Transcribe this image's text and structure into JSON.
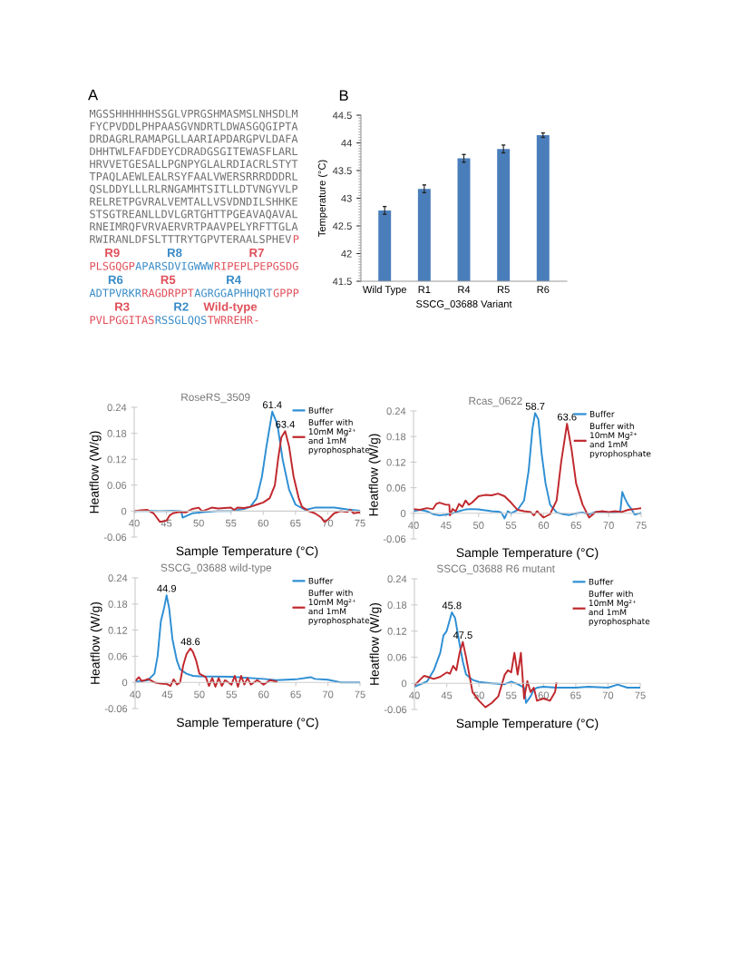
{
  "chart_data": [
    {
      "type": "other",
      "title": "A",
      "annotations": [
        "MGSSHHHHHHSSGLVPRGSHMASMSLNHSDLM",
        "FYCPVDDLPHPAASGVNDRTLDWASGQGIPTA",
        "DRDAGRLRAMAPGLLAARIAPDARGPVLDAFA",
        "DHHTWLFAFDDEYCDRADGSGITEWASFLARL",
        "HRVVETGESALLPGNPYGLALRDIACRLSTYT",
        "TPAQLAEWLEALRSYFAALVWERSRRRDDDRL",
        "QSLDDYLLLRLRNGAMHTSITLLDTVNGYVLP",
        "RELRETPGVRALVEMTALLVSVDNDILSHHKE",
        "STSGTREANLLDVLGRTGHTTPGEAVAQAVAL",
        "RNEIMRQFVRVAERVRTPAAVPELYRFTTGLA",
        "RWIRANLDFSLTTTRYTGPVTERAALSPHEV",
        "P",
        "PLSGQGP",
        "APARSDVIGWWW",
        "RIPEPLPEPGSDG",
        "ADTPVRKR",
        "RAGDRPPT",
        "AGRGGAPHHQRT",
        "GPPP",
        "PVLPGGITAS",
        "RSSGLQQS",
        "TWRREHR",
        "-"
      ],
      "categories": [
        null,
        null,
        null,
        null,
        null,
        null,
        null,
        null,
        null,
        null,
        null,
        null,
        "R9",
        "R8",
        "R7",
        "R6",
        "R5",
        "R4",
        null,
        "R3",
        "R2",
        "Wild-type",
        null
      ],
      "colors": [
        "#707070",
        "#707070",
        "#707070",
        "#707070",
        "#707070",
        "#707070",
        "#707070",
        "#707070",
        "#707070",
        "#707070",
        "#707070",
        "#e0505a",
        "#e0505a",
        "#3a8cc8",
        "#e0505a",
        "#3a8cc8",
        "#e0505a",
        "#3a8cc8",
        "#e0505a",
        "#e0505a",
        "#3a8cc8",
        "#e0505a",
        "#e0505a"
      ]
    },
    {
      "type": "bar",
      "title": "B",
      "xlabel": "SSCG_03688 Variant",
      "ylabel": "Temperature (°C)",
      "categories": [
        "Wild Type",
        "R1",
        "R4",
        "R5",
        "R6"
      ],
      "values": [
        42.78,
        43.17,
        43.72,
        43.89,
        44.14
      ],
      "errors": [
        0.07,
        0.07,
        0.07,
        0.07,
        0.04
      ],
      "color": "#4a7ebb",
      "ylim": [
        41.5,
        44.5
      ],
      "yticks": [
        41.5,
        42,
        42.5,
        43,
        43.5,
        44,
        44.5
      ],
      "grid": false
    },
    {
      "type": "line",
      "title": "RoseRS_3509",
      "xlabel": "Sample Temperature (°C)",
      "ylabel": "Heatflow (W/g)",
      "legend": "top right",
      "grid": false,
      "xlim": [
        40,
        75
      ],
      "xticks": [
        40,
        45,
        50,
        55,
        60,
        65,
        70,
        75
      ],
      "ylim": [
        -0.06,
        0.24
      ],
      "yticks": [
        -0.06,
        0,
        0.06,
        0.12,
        0.18,
        0.24
      ],
      "series": [
        {
          "name": "Buffer",
          "color": "#2e8fd4",
          "x": [
            40,
            42,
            44,
            46,
            47.3,
            47.5,
            49,
            51,
            53,
            55,
            57,
            58,
            59,
            59.8,
            60.5,
            61.4,
            62.2,
            63,
            64,
            65,
            66.5,
            68,
            71,
            73,
            75
          ],
          "values": [
            0,
            0.001,
            0,
            0.001,
            0,
            -0.015,
            -0.005,
            -0.002,
            0,
            0,
            0.005,
            0.01,
            0.03,
            0.08,
            0.15,
            0.23,
            0.2,
            0.12,
            0.05,
            0.015,
            0.003,
            0.008,
            0.008,
            0.004,
            0.001
          ]
        },
        {
          "name": "Buffer with\n10mM Mg²⁺\nand 1mM\npyrophosphate",
          "color": "#c0282d",
          "x": [
            40,
            41,
            42,
            43,
            44,
            45,
            45.5,
            46,
            47,
            48,
            49,
            50,
            50.5,
            51,
            52,
            53,
            54,
            55,
            55.5,
            56,
            57,
            58,
            59,
            60,
            61,
            61.8,
            62.3,
            62.8,
            63.4,
            64,
            64.7,
            65.5,
            66,
            67,
            68,
            69,
            69.5,
            70,
            71,
            72,
            73,
            73.5,
            74,
            75
          ],
          "values": [
            0,
            0.002,
            0.003,
            -0.005,
            -0.025,
            -0.022,
            -0.01,
            -0.005,
            -0.002,
            -0.003,
            0.005,
            0.008,
            0,
            0.002,
            0.008,
            0.006,
            0.007,
            0.008,
            0.003,
            0.008,
            0.007,
            0.01,
            0.015,
            0.02,
            0.03,
            0.06,
            0.12,
            0.17,
            0.185,
            0.15,
            0.08,
            0.03,
            0.01,
            0,
            -0.005,
            -0.015,
            -0.025,
            -0.02,
            -0.005,
            0,
            -0.002,
            0.003,
            -0.005,
            -0.003
          ]
        }
      ],
      "annotations": [
        {
          "text": "61.4",
          "x": 61.4,
          "y": 0.23
        },
        {
          "text": "63.4",
          "x": 63.4,
          "y": 0.185
        }
      ]
    },
    {
      "type": "line",
      "title": "Rcas_0622",
      "xlabel": "Sample Temperature (°C)",
      "ylabel": "Heatflow (W/g)",
      "legend": "top right",
      "grid": false,
      "xlim": [
        40,
        75
      ],
      "xticks": [
        40,
        45,
        50,
        55,
        60,
        65,
        70,
        75
      ],
      "ylim": [
        -0.06,
        0.24
      ],
      "yticks": [
        -0.06,
        0,
        0.06,
        0.12,
        0.18,
        0.24
      ],
      "series": [
        {
          "name": "Buffer",
          "color": "#2e8fd4",
          "x": [
            40,
            41,
            42,
            43,
            44,
            45,
            46,
            47,
            48,
            49,
            50,
            51,
            52,
            53,
            53.5,
            54,
            54.5,
            55,
            56,
            57,
            57.7,
            58.3,
            58.7,
            59.2,
            59.7,
            60.3,
            61,
            62,
            63,
            64,
            65,
            66,
            67,
            68,
            69,
            70,
            71,
            71.8,
            72.1,
            72.5,
            73,
            73.5,
            74,
            75
          ],
          "values": [
            0.005,
            0.008,
            0.005,
            -0.002,
            -0.005,
            -0.003,
            0,
            0.005,
            0.009,
            0.01,
            0.009,
            0.007,
            0.005,
            0.004,
            0.002,
            -0.012,
            0.005,
            0,
            0.008,
            0.03,
            0.1,
            0.2,
            0.235,
            0.22,
            0.14,
            0.07,
            0.02,
            0.002,
            -0.002,
            -0.004,
            0,
            0.002,
            -0.002,
            0.003,
            0.004,
            0.002,
            0.002,
            0.005,
            0.05,
            0.035,
            0.02,
            0.01,
            -0.003,
            0.001
          ]
        },
        {
          "name": "Buffer with\n10mM Mg²⁺\nand 1mM\npyrophosphate",
          "color": "#c0282d",
          "x": [
            40,
            41,
            42,
            43,
            43.5,
            44,
            45,
            45.5,
            45.6,
            46,
            46.5,
            47,
            47.5,
            48,
            48.5,
            49,
            50,
            51,
            52,
            53,
            54,
            55,
            56,
            57,
            58,
            58.5,
            59,
            60,
            61,
            62,
            62.7,
            63.6,
            64.3,
            65,
            66,
            67,
            68,
            69,
            70,
            71,
            72,
            73,
            74,
            75
          ],
          "values": [
            0.01,
            0.008,
            0.012,
            0.01,
            0.022,
            0.025,
            0.02,
            0.02,
            -0.005,
            0.01,
            0.005,
            0.022,
            0.015,
            0.03,
            0.02,
            0.025,
            0.04,
            0.043,
            0.042,
            0.046,
            0.04,
            0.025,
            0.008,
            0.005,
            0.003,
            -0.005,
            0.005,
            -0.01,
            -0.002,
            0.03,
            0.12,
            0.21,
            0.15,
            0.07,
            0.02,
            -0.01,
            0.003,
            0.005,
            0.003,
            0.005,
            0.003,
            0.008,
            0.01,
            0.012
          ]
        }
      ],
      "annotations": [
        {
          "text": "58.7",
          "x": 58.7,
          "y": 0.235
        },
        {
          "text": "63.6",
          "x": 63.6,
          "y": 0.21
        }
      ]
    },
    {
      "type": "line",
      "title": "SSCG_03688 wild-type",
      "xlabel": "Sample Temperature (°C)",
      "ylabel": "Heatflow (W/g)",
      "legend": "top right",
      "grid": false,
      "xlim": [
        40,
        75
      ],
      "xticks": [
        40,
        45,
        50,
        55,
        60,
        65,
        70,
        75
      ],
      "ylim": [
        -0.06,
        0.24
      ],
      "yticks": [
        -0.06,
        0,
        0.06,
        0.12,
        0.18,
        0.24
      ],
      "series": [
        {
          "name": "Buffer",
          "color": "#2e8fd4",
          "x": [
            40,
            41,
            42,
            43,
            43.5,
            44,
            44.5,
            44.9,
            45.3,
            45.8,
            46.5,
            47,
            48,
            49,
            50,
            55,
            60,
            62,
            65,
            67.3,
            68,
            70,
            71,
            72,
            75
          ],
          "values": [
            0.002,
            0.003,
            0.005,
            0.02,
            0.06,
            0.14,
            0.17,
            0.2,
            0.17,
            0.1,
            0.05,
            0.03,
            0.02,
            0.015,
            0.014,
            0.013,
            0.008,
            0.005,
            0.007,
            0.012,
            0.008,
            0.006,
            0.003,
            0,
            0
          ]
        },
        {
          "name": "Buffer with\n10mM Mg²⁺\nand 1mM\npyrophosphate",
          "color": "#c0282d",
          "x": [
            40,
            40.6,
            41,
            41.5,
            42,
            43,
            44,
            45,
            45.5,
            46,
            46.5,
            47,
            47.5,
            48,
            48.6,
            49,
            49.5,
            50,
            51,
            51.5,
            52,
            52.5,
            53,
            53.5,
            54,
            55,
            55.5,
            56,
            56.5,
            57,
            57.5,
            58,
            59,
            60,
            61,
            62
          ],
          "values": [
            0.003,
            0.012,
            0.003,
            0.005,
            0.008,
            0,
            -0.003,
            -0.004,
            -0.008,
            0.007,
            -0.005,
            0,
            0.04,
            0.065,
            0.078,
            0.07,
            0.05,
            0.02,
            0.012,
            -0.008,
            0.01,
            -0.01,
            0.01,
            -0.008,
            0.005,
            -0.005,
            0.015,
            -0.01,
            0.015,
            -0.005,
            0.01,
            -0.005,
            0.005,
            -0.005,
            0.005,
            0.002
          ]
        }
      ],
      "annotations": [
        {
          "text": "44.9",
          "x": 44.9,
          "y": 0.2
        },
        {
          "text": "48.6",
          "x": 48.6,
          "y": 0.078
        }
      ]
    },
    {
      "type": "line",
      "title": "SSCG_03688 R6 mutant",
      "xlabel": "Sample Temperature (°C)",
      "ylabel": "Heatflow (W/g)",
      "legend": "top right",
      "grid": false,
      "xlim": [
        40,
        75
      ],
      "xticks": [
        40,
        45,
        50,
        55,
        60,
        65,
        70,
        75
      ],
      "ylim": [
        -0.06,
        0.24
      ],
      "yticks": [
        -0.06,
        0,
        0.06,
        0.12,
        0.18,
        0.24
      ],
      "series": [
        {
          "name": "Buffer",
          "color": "#2e8fd4",
          "x": [
            40,
            41,
            42,
            43,
            44,
            44.5,
            45,
            45.8,
            46.3,
            47,
            47.5,
            48,
            49,
            50,
            52,
            54,
            55,
            56,
            57,
            57.3,
            58,
            58.5,
            59,
            60,
            62,
            65,
            67,
            70,
            71.5,
            73,
            75
          ],
          "values": [
            -0.008,
            -0.002,
            0.005,
            0.03,
            0.07,
            0.11,
            0.12,
            0.163,
            0.15,
            0.09,
            0.05,
            0.02,
            0.008,
            0.003,
            0,
            -0.002,
            0.004,
            -0.002,
            -0.01,
            -0.045,
            -0.03,
            -0.015,
            -0.01,
            -0.008,
            -0.01,
            -0.01,
            -0.008,
            -0.01,
            -0.003,
            -0.01,
            -0.01
          ]
        },
        {
          "name": "Buffer with\n10mM Mg²⁺\nand 1mM\npyrophosphate",
          "color": "#c0282d",
          "x": [
            40,
            41,
            41.5,
            42,
            43,
            44,
            45,
            45.5,
            46,
            46.5,
            47,
            47.5,
            48,
            48.5,
            49,
            50,
            51,
            52,
            53,
            54,
            54.5,
            55,
            55.5,
            56,
            56.5,
            57,
            57.5,
            58,
            58.5,
            59,
            60,
            61,
            61.8,
            62
          ],
          "values": [
            -0.005,
            0.01,
            0.017,
            0.015,
            0.01,
            0.015,
            0.025,
            0.022,
            0.04,
            0.03,
            0.07,
            0.095,
            0.06,
            0.02,
            -0.02,
            -0.04,
            -0.055,
            -0.045,
            -0.03,
            0.02,
            0.03,
            0.025,
            0.07,
            0.02,
            0.07,
            -0.035,
            0.005,
            -0.02,
            -0.01,
            -0.04,
            -0.035,
            -0.04,
            -0.02,
            0
          ]
        }
      ],
      "annotations": [
        {
          "text": "45.8",
          "x": 45.8,
          "y": 0.163
        },
        {
          "text": "47.5",
          "x": 47.5,
          "y": 0.095
        }
      ]
    }
  ]
}
